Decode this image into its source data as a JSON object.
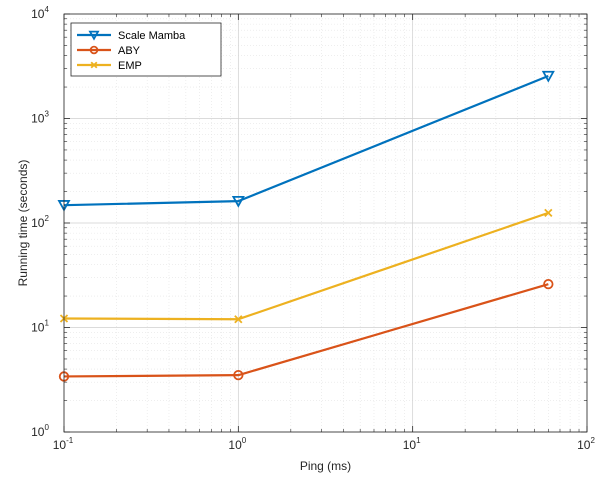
{
  "chart_data": {
    "type": "line",
    "title": "",
    "xlabel": "Ping (ms)",
    "ylabel": "Running time (seconds)",
    "x_scale": "log",
    "y_scale": "log",
    "xlim": [
      0.1,
      100
    ],
    "ylim": [
      1,
      10000
    ],
    "x_ticks": [
      {
        "base": "10",
        "exp": "-1",
        "value": 0.1
      },
      {
        "base": "10",
        "exp": "0",
        "value": 1
      },
      {
        "base": "10",
        "exp": "1",
        "value": 10
      },
      {
        "base": "10",
        "exp": "2",
        "value": 100
      }
    ],
    "y_ticks": [
      {
        "base": "10",
        "exp": "0",
        "value": 1
      },
      {
        "base": "10",
        "exp": "1",
        "value": 10
      },
      {
        "base": "10",
        "exp": "2",
        "value": 100
      },
      {
        "base": "10",
        "exp": "3",
        "value": 1000
      },
      {
        "base": "10",
        "exp": "4",
        "value": 10000
      }
    ],
    "grid": true,
    "legend_position": "top-left",
    "x": [
      0.1,
      1,
      60
    ],
    "series": [
      {
        "name": "Scale Mamba",
        "values": [
          148,
          162,
          2550
        ],
        "color": "#0072bd",
        "marker": "triangle-down"
      },
      {
        "name": "ABY",
        "values": [
          3.4,
          3.5,
          26
        ],
        "color": "#d95319",
        "marker": "circle"
      },
      {
        "name": "EMP",
        "values": [
          12.2,
          12.0,
          125
        ],
        "color": "#edb120",
        "marker": "x"
      }
    ]
  }
}
